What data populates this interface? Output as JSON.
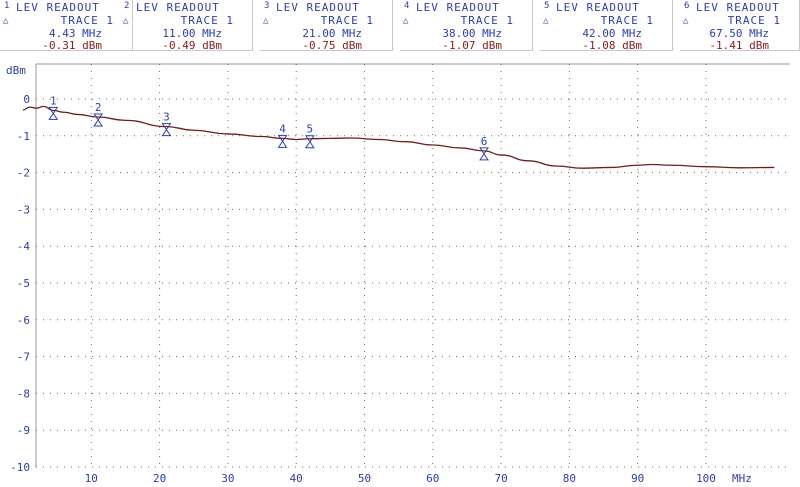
{
  "readouts": [
    {
      "num": "1",
      "title": "LEV READOUT",
      "trace": "TRACE 1",
      "freq": "4.43 MHz",
      "level": "-0.31 dBm"
    },
    {
      "num": "2",
      "title": "LEV READOUT",
      "trace": "TRACE 1",
      "freq": "11.00 MHz",
      "level": "-0.49 dBm"
    },
    {
      "num": "3",
      "title": "LEV READOUT",
      "trace": "TRACE 1",
      "freq": "21.00 MHz",
      "level": "-0.75 dBm"
    },
    {
      "num": "4",
      "title": "LEV READOUT",
      "trace": "TRACE 1",
      "freq": "38.00 MHz",
      "level": "-1.07 dBm"
    },
    {
      "num": "5",
      "title": "LEV READOUT",
      "trace": "TRACE 1",
      "freq": "42.00 MHz",
      "level": "-1.08 dBm"
    },
    {
      "num": "6",
      "title": "LEV READOUT",
      "trace": "TRACE 1",
      "freq": "67.50 MHz",
      "level": "-1.41 dBm"
    }
  ],
  "colors": {
    "trace": "#6b1f1f",
    "axis": "#2d3ea8",
    "grid": "#6a6a6a",
    "level": "#8a1a1a"
  },
  "chart_data": {
    "type": "line",
    "ylabel": "dBm",
    "xlabel": "MHz",
    "xlim": [
      0,
      110
    ],
    "ylim": [
      -10,
      0.5
    ],
    "x_ticks": [
      10,
      20,
      30,
      40,
      50,
      60,
      70,
      80,
      90,
      100
    ],
    "y_ticks": [
      0,
      -1,
      -2,
      -3,
      -4,
      -5,
      -6,
      -7,
      -8,
      -9,
      -10
    ],
    "grid": true,
    "series": [
      {
        "x": [
          0,
          1,
          2,
          3,
          4.43,
          6,
          8,
          11,
          15,
          21,
          25,
          30,
          35,
          38,
          40,
          42,
          45,
          48,
          52,
          56,
          60,
          64,
          67.5,
          70,
          74,
          78,
          82,
          86,
          90,
          92,
          95,
          100,
          105,
          110
        ],
        "values": [
          -0.3,
          -0.22,
          -0.25,
          -0.2,
          -0.31,
          -0.36,
          -0.42,
          -0.49,
          -0.58,
          -0.75,
          -0.85,
          -0.95,
          -1.02,
          -1.07,
          -1.1,
          -1.08,
          -1.07,
          -1.06,
          -1.1,
          -1.16,
          -1.25,
          -1.33,
          -1.41,
          -1.52,
          -1.68,
          -1.82,
          -1.88,
          -1.86,
          -1.8,
          -1.78,
          -1.8,
          -1.84,
          -1.87,
          -1.86
        ]
      }
    ],
    "markers": [
      {
        "label": "1",
        "x": 4.43,
        "y": -0.31
      },
      {
        "label": "2",
        "x": 11.0,
        "y": -0.49
      },
      {
        "label": "3",
        "x": 21.0,
        "y": -0.75
      },
      {
        "label": "4",
        "x": 38.0,
        "y": -1.07
      },
      {
        "label": "5",
        "x": 42.0,
        "y": -1.08
      },
      {
        "label": "6",
        "x": 67.5,
        "y": -1.41
      }
    ]
  }
}
